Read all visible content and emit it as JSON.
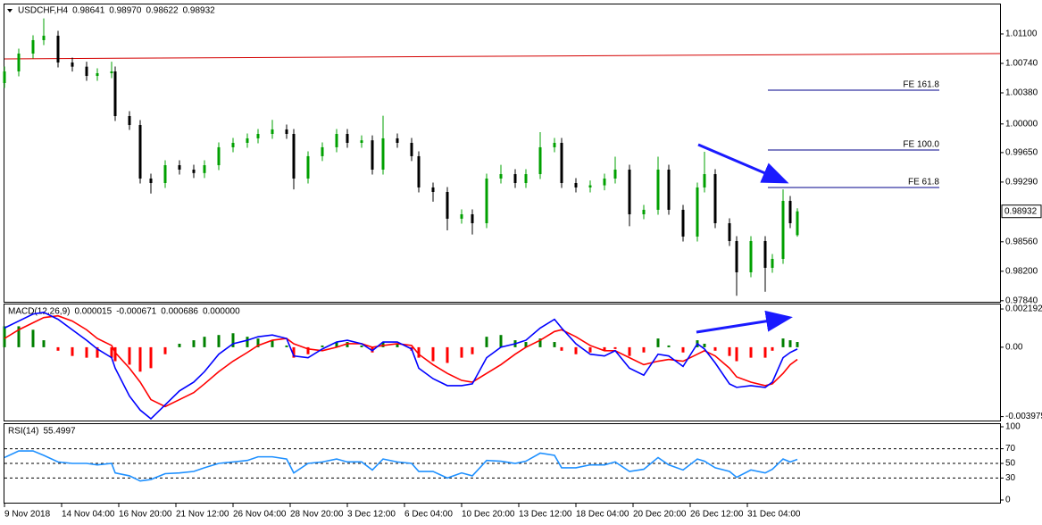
{
  "chart_data": [
    {
      "type": "candlestick",
      "symbol": "USDCHF,H4",
      "header_values": [
        0.98641,
        {
          "value": 0.9897,
          "label": "0.98970"
        },
        0.98622,
        0.98932
      ],
      "xlim": [
        0,
        278.75
      ],
      "xticks": [
        {
          "value": 0,
          "label": "9 Nov 2018"
        },
        {
          "value": 16,
          "label": "14 Nov 04:00"
        },
        {
          "value": 32,
          "label": "16 Nov 20:00"
        },
        {
          "value": 48,
          "label": "21 Nov 12:00"
        },
        {
          "value": 64,
          "label": "26 Nov 04:00"
        },
        {
          "value": 80,
          "label": "28 Nov 20:00"
        },
        {
          "value": 96,
          "label": "3 Dec 12:00"
        },
        {
          "value": 112,
          "label": "6 Dec 04:00"
        },
        {
          "value": 128,
          "label": "10 Dec 20:00"
        },
        {
          "value": 144,
          "label": "13 Dec 12:00"
        },
        {
          "value": 160,
          "label": "18 Dec 04:00"
        },
        {
          "value": 176,
          "label": "20 Dec 20:00"
        },
        {
          "value": 192,
          "label": "26 Dec 12:00"
        },
        {
          "value": 208,
          "label": "31 Dec 04:00"
        }
      ],
      "x": [
        0,
        4,
        8,
        11,
        15,
        19,
        23,
        26,
        30,
        31,
        35,
        38,
        41,
        45,
        49,
        53,
        56,
        60,
        64,
        68,
        71,
        75,
        79,
        81,
        85,
        89,
        93,
        96,
        100,
        103,
        106,
        110,
        114,
        116,
        120,
        124,
        128,
        131,
        135,
        139,
        143,
        146,
        150,
        154,
        156,
        160,
        164,
        168,
        171,
        175,
        179,
        183,
        186,
        190,
        194,
        196,
        199,
        203,
        205,
        209,
        213,
        215,
        218,
        220,
        222
      ],
      "open": [
        1.005,
        1.00642,
        1.0086,
        1.01024,
        1.01078,
        1.00751,
        1.007,
        1.00587,
        1.0062,
        1.00642,
        1.00096,
        0.99987,
        0.99333,
        0.99278,
        0.99496,
        0.99442,
        0.994,
        0.99496,
        0.99715,
        0.99769,
        0.99824,
        0.99878,
        0.99933,
        0.99878,
        0.99333,
        0.99606,
        0.99715,
        0.99878,
        0.99769,
        0.998,
        0.99442,
        0.99824,
        0.99769,
        0.99606,
        0.99224,
        0.99169,
        0.98842,
        0.98896,
        0.98787,
        0.99333,
        0.99387,
        0.99278,
        0.99387,
        0.99715,
        0.99769,
        0.99278,
        0.99224,
        0.9925,
        0.99333,
        0.99442,
        0.98896,
        0.98951,
        0.99442,
        0.98951,
        0.98624,
        0.99224,
        0.99387,
        0.98787,
        0.98569,
        0.98187,
        0.98569,
        0.98242,
        0.98351,
        0.9906,
        0.98641
      ],
      "high": [
        1.00702,
        1.0092,
        1.01084,
        1.0129,
        1.01138,
        1.00811,
        1.0076,
        1.0068,
        1.0076,
        1.00702,
        1.00156,
        1.00047,
        0.99393,
        0.99556,
        0.99556,
        0.99502,
        0.99556,
        0.99775,
        0.99829,
        0.99884,
        0.99938,
        1.0005,
        0.99993,
        0.99938,
        0.99666,
        0.99775,
        0.99938,
        0.99938,
        0.9986,
        0.9986,
        1.001,
        0.99884,
        0.99829,
        0.99666,
        0.99284,
        0.99229,
        0.98956,
        0.98956,
        0.99393,
        0.995,
        0.99447,
        0.99447,
        0.999,
        0.99829,
        0.99829,
        0.99338,
        0.9931,
        0.99393,
        0.996,
        0.99502,
        0.99011,
        0.996,
        0.99502,
        0.99011,
        0.99284,
        0.9966,
        0.99447,
        0.98847,
        0.98629,
        0.98629,
        0.98629,
        0.98411,
        0.992,
        0.9912,
        0.9897
      ],
      "low": [
        1.0044,
        1.00582,
        1.008,
        1.00964,
        1.00691,
        1.0064,
        1.00527,
        1.00527,
        1.0056,
        1.00036,
        0.99927,
        0.99273,
        0.9915,
        0.99218,
        0.99382,
        0.9934,
        0.9934,
        0.99436,
        0.99655,
        0.99709,
        0.99764,
        0.99818,
        0.99818,
        0.992,
        0.99273,
        0.99546,
        0.99655,
        0.99709,
        0.99709,
        0.99382,
        0.99382,
        0.99709,
        0.99546,
        0.99164,
        0.9905,
        0.987,
        0.98782,
        0.9865,
        0.98727,
        0.99273,
        0.99218,
        0.99218,
        0.99327,
        0.99655,
        0.99218,
        0.99164,
        0.99164,
        0.9919,
        0.99273,
        0.9875,
        0.98836,
        0.98891,
        0.98891,
        0.98564,
        0.98564,
        0.99164,
        0.98727,
        0.98509,
        0.979,
        0.98127,
        0.9795,
        0.98182,
        0.98291,
        0.98727,
        0.98622
      ],
      "close": [
        1.00642,
        1.0086,
        1.01024,
        1.01078,
        1.00751,
        1.007,
        1.00587,
        1.0062,
        1.00642,
        1.00096,
        0.99987,
        0.99333,
        0.99278,
        0.99496,
        0.99442,
        0.994,
        0.99496,
        0.99715,
        0.99769,
        0.99824,
        0.99878,
        0.99933,
        0.99878,
        0.99333,
        0.99606,
        0.99715,
        0.99878,
        0.99769,
        0.998,
        0.99442,
        0.99824,
        0.99769,
        0.99606,
        0.99224,
        0.99169,
        0.98842,
        0.98896,
        0.98787,
        0.99333,
        0.99387,
        0.99278,
        0.99387,
        0.99715,
        0.99769,
        0.99278,
        0.99224,
        0.9925,
        0.99333,
        0.99442,
        0.98896,
        0.98951,
        0.99442,
        0.98951,
        0.98624,
        0.99224,
        0.99387,
        0.98787,
        0.98569,
        0.98187,
        0.98569,
        0.98242,
        0.98351,
        0.9906,
        0.98787,
        0.98932
      ],
      "bull_color": "#00a000",
      "bear_color": "#000000",
      "ylim": [
        0.97827,
        1.0146
      ],
      "yticks": [
        {
          "value": 1.011,
          "label": "1.01100"
        },
        {
          "value": 1.0074,
          "label": "1.00740"
        },
        {
          "value": 1.0038,
          "label": "1.00380"
        },
        {
          "value": 1,
          "label": "1.00000"
        },
        {
          "value": 0.9965,
          "label": "0.99650"
        },
        {
          "value": 0.9929,
          "label": "0.99290"
        },
        {
          "value": 0.9856,
          "label": "0.98560"
        },
        {
          "value": 0.982,
          "label": "0.98200"
        },
        {
          "value": 0.9784,
          "label": "0.97840"
        }
      ],
      "last_price": 0.98932,
      "trend_line": {
        "values": [
          1.00795,
          1.0086
        ],
        "color": "#d40000"
      },
      "fib_levels": [
        {
          "label": "FE 161.8",
          "value": 1.00413
        },
        {
          "label": "FE 100.0",
          "value": 0.99682
        },
        {
          "label": "FE 61.8",
          "value": 0.99224
        }
      ],
      "fib_color": "#00008b"
    },
    {
      "type": "macd",
      "title": "MACD(12,26,9)",
      "header_values": [
        1.5e-05,
        -0.000671,
        0.000686,
        {
          "value": 0,
          "label": "0.000000"
        }
      ],
      "ylim": [
        -0.0042,
        0.00245
      ],
      "yticks": [
        0.002192,
        {
          "value": 0,
          "label": "0.00"
        },
        -0.003975
      ],
      "histogram": {
        "up_color": "#008000",
        "down_color": "#ff0000",
        "values": [
          0.0012,
          0.0012,
          0.001,
          0.0004,
          -0.0002,
          -0.0005,
          -0.0006,
          -0.0006,
          -0.0006,
          -0.0008,
          -0.001,
          -0.0014,
          -0.0012,
          -0.0004,
          0.0002,
          0.0004,
          0.0006,
          0.0007,
          0.0008,
          0.0006,
          0.0005,
          0.0004,
          0.0001,
          -0.0006,
          -0.0004,
          0.0001,
          0.0003,
          0.0003,
          0.0001,
          -0.0003,
          0.0003,
          0.0002,
          -0.0002,
          -0.0006,
          -0.0008,
          -0.0009,
          -0.0006,
          -0.0004,
          0.0006,
          0.0007,
          0.0004,
          0.0003,
          0.0005,
          0.0003,
          -0.0002,
          -0.0004,
          -0.0003,
          -0.0002,
          -0.0001,
          -0.0005,
          -0.0003,
          0.0005,
          0.0001,
          -0.0003,
          0.0004,
          0.0002,
          -0.0002,
          -0.0005,
          -0.0008,
          -0.0006,
          -0.0006,
          -0.0002,
          0.0005,
          0.0004,
          0.0003
        ]
      },
      "main_line": {
        "color": "#0000ff",
        "values": [
          0.0011,
          0.0015,
          0.0019,
          0.002,
          0.0016,
          0.001,
          0.0004,
          -0.0001,
          -0.0006,
          -0.0012,
          -0.0028,
          -0.0036,
          -0.0041,
          -0.0033,
          -0.0025,
          -0.002,
          -0.0014,
          -0.0004,
          0.0002,
          0.0004,
          0.0006,
          0.0007,
          0.0005,
          -0.0005,
          -0.0006,
          -0.0001,
          0.0003,
          0.0004,
          0.0002,
          -0.0002,
          0.0003,
          0.0003,
          -0.0001,
          -0.0012,
          -0.0018,
          -0.0022,
          -0.0022,
          -0.0021,
          -0.0006,
          0,
          0.0002,
          0.0004,
          0.0011,
          0.0016,
          0.0011,
          0.0002,
          -0.0004,
          -0.0005,
          -0.0002,
          -0.0012,
          -0.0016,
          -0.0004,
          -0.0005,
          -0.0011,
          0.0002,
          -0.0001,
          -0.0009,
          -0.0021,
          -0.0023,
          -0.0022,
          -0.0023,
          -0.002,
          -0.0006,
          -0.0003,
          -0.0001
        ]
      },
      "signal_line": {
        "color": "#ff0000",
        "values": [
          0.0005,
          0.001,
          0.0014,
          0.0017,
          0.0018,
          0.0015,
          0.001,
          0.0005,
          0.0001,
          -0.0003,
          -0.0012,
          -0.002,
          -0.003,
          -0.0034,
          -0.003,
          -0.0026,
          -0.0021,
          -0.0014,
          -0.0008,
          -0.0003,
          0.0001,
          0.0004,
          0.0005,
          0.0002,
          -0.0001,
          -0.0002,
          0,
          0.0002,
          0.0002,
          0,
          0.0001,
          0.0002,
          0.0001,
          -0.0004,
          -0.001,
          -0.0015,
          -0.0019,
          -0.002,
          -0.0015,
          -0.001,
          -0.0004,
          0,
          0.0004,
          0.0009,
          0.001,
          0.0006,
          0.0001,
          -0.0002,
          -0.0002,
          -0.0006,
          -0.001,
          -0.0008,
          -0.0007,
          -0.0008,
          -0.0004,
          -0.0002,
          -0.0005,
          -0.0012,
          -0.0017,
          -0.002,
          -0.0022,
          -0.0021,
          -0.0015,
          -0.001,
          -0.0007
        ]
      }
    },
    {
      "type": "line",
      "title": "RSI(14)",
      "header_values": [
        55.4997
      ],
      "ylim": [
        0,
        100
      ],
      "yticks": [
        100,
        70,
        50,
        30,
        0
      ],
      "color": "#1e90ff",
      "values": [
        58,
        67,
        67,
        61,
        52,
        50,
        50,
        48,
        50,
        37,
        33,
        26,
        28,
        36,
        37,
        39,
        44,
        50,
        52,
        54,
        59,
        59,
        56,
        37,
        50,
        52,
        56,
        52,
        52,
        41,
        56,
        52,
        50,
        39,
        39,
        30,
        37,
        33,
        54,
        53,
        50,
        53,
        64,
        61,
        44,
        44,
        48,
        48,
        52,
        39,
        42,
        58,
        48,
        41,
        56,
        53,
        44,
        39,
        31,
        41,
        37,
        42,
        56,
        52,
        55.4997
      ]
    }
  ]
}
